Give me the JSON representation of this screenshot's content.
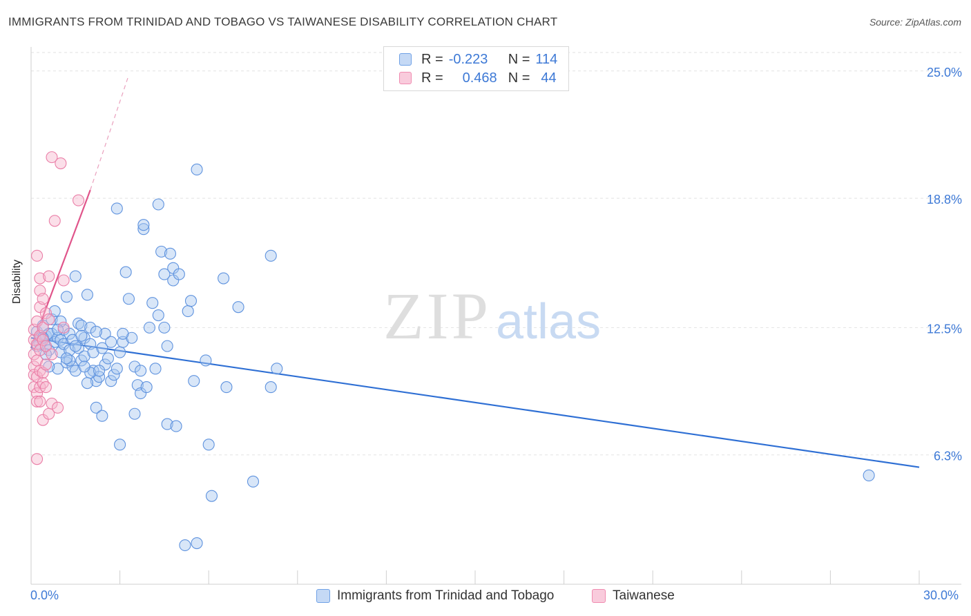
{
  "title": "IMMIGRANTS FROM TRINIDAD AND TOBAGO VS TAIWANESE DISABILITY CORRELATION CHART",
  "source": "Source: ZipAtlas.com",
  "watermark": {
    "zip": "ZIP",
    "atlas": "atlas"
  },
  "legend_stats": [
    {
      "r_label": "R =",
      "r_value": "-0.223",
      "n_label": "N =",
      "n_value": "114",
      "color": "#6fa1e6"
    },
    {
      "r_label": "R =",
      "r_value": "0.468",
      "n_label": "N =",
      "n_value": "44",
      "color": "#f08bb0"
    }
  ],
  "chart_data": {
    "type": "scatter",
    "title": "IMMIGRANTS FROM TRINIDAD AND TOBAGO VS TAIWANESE DISABILITY CORRELATION CHART",
    "xlabel": "",
    "ylabel": "Disability",
    "xlim": [
      0,
      30
    ],
    "ylim": [
      0,
      25.9
    ],
    "x_tick_labels": [
      "0.0%",
      "30.0%"
    ],
    "y_ticks": [
      6.3,
      12.5,
      18.8,
      25.0
    ],
    "y_tick_labels": [
      "6.3%",
      "12.5%",
      "18.8%",
      "25.0%"
    ],
    "grid": true,
    "series": [
      {
        "name": "Immigrants from Trinidad and Tobago",
        "color": "#6fa1e6",
        "line_color": "#2e6fd4",
        "trend": {
          "x": [
            0.0,
            30.0
          ],
          "y": [
            12.0,
            5.7
          ]
        },
        "points": [
          [
            0.2,
            12.3
          ],
          [
            0.3,
            12.0
          ],
          [
            0.3,
            11.7
          ],
          [
            0.4,
            12.6
          ],
          [
            0.4,
            11.9
          ],
          [
            0.5,
            12.1
          ],
          [
            0.5,
            11.6
          ],
          [
            0.6,
            12.2
          ],
          [
            0.6,
            11.4
          ],
          [
            0.7,
            12.9
          ],
          [
            0.7,
            12.2
          ],
          [
            0.8,
            11.8
          ],
          [
            0.8,
            13.3
          ],
          [
            0.9,
            12.0
          ],
          [
            0.9,
            10.5
          ],
          [
            1.0,
            11.3
          ],
          [
            1.0,
            11.9
          ],
          [
            1.1,
            12.4
          ],
          [
            1.1,
            11.7
          ],
          [
            1.2,
            10.8
          ],
          [
            1.2,
            14.0
          ],
          [
            1.3,
            11.4
          ],
          [
            1.3,
            12.2
          ],
          [
            1.4,
            10.6
          ],
          [
            1.4,
            11.9
          ],
          [
            1.5,
            15.0
          ],
          [
            1.5,
            10.4
          ],
          [
            1.6,
            12.7
          ],
          [
            1.6,
            11.5
          ],
          [
            1.7,
            12.6
          ],
          [
            1.7,
            10.9
          ],
          [
            1.8,
            12.0
          ],
          [
            1.8,
            11.1
          ],
          [
            1.9,
            14.1
          ],
          [
            2.0,
            12.5
          ],
          [
            2.0,
            11.7
          ],
          [
            2.1,
            10.4
          ],
          [
            2.1,
            11.3
          ],
          [
            2.2,
            9.9
          ],
          [
            2.2,
            8.6
          ],
          [
            2.3,
            10.1
          ],
          [
            2.4,
            11.5
          ],
          [
            2.4,
            8.2
          ],
          [
            2.5,
            12.2
          ],
          [
            2.5,
            10.7
          ],
          [
            2.6,
            11.0
          ],
          [
            2.7,
            9.9
          ],
          [
            2.8,
            10.2
          ],
          [
            2.9,
            18.3
          ],
          [
            3.0,
            11.3
          ],
          [
            3.0,
            6.8
          ],
          [
            3.1,
            11.8
          ],
          [
            3.2,
            15.2
          ],
          [
            3.3,
            13.9
          ],
          [
            3.4,
            12.0
          ],
          [
            3.5,
            8.3
          ],
          [
            3.5,
            10.6
          ],
          [
            3.6,
            9.7
          ],
          [
            3.7,
            10.4
          ],
          [
            3.7,
            9.3
          ],
          [
            3.9,
            9.6
          ],
          [
            4.0,
            12.5
          ],
          [
            4.1,
            13.7
          ],
          [
            4.2,
            10.5
          ],
          [
            4.3,
            13.1
          ],
          [
            4.4,
            16.2
          ],
          [
            4.5,
            15.1
          ],
          [
            4.5,
            12.5
          ],
          [
            4.6,
            11.6
          ],
          [
            4.6,
            7.8
          ],
          [
            4.7,
            16.1
          ],
          [
            4.8,
            15.4
          ],
          [
            4.8,
            14.8
          ],
          [
            4.9,
            7.7
          ],
          [
            5.0,
            15.1
          ],
          [
            5.3,
            13.3
          ],
          [
            5.4,
            13.8
          ],
          [
            5.5,
            9.9
          ],
          [
            5.6,
            20.2
          ],
          [
            5.9,
            10.9
          ],
          [
            6.0,
            6.8
          ],
          [
            6.1,
            4.3
          ],
          [
            6.5,
            14.9
          ],
          [
            6.6,
            9.6
          ],
          [
            7.0,
            13.5
          ],
          [
            7.5,
            5.0
          ],
          [
            8.1,
            16.0
          ],
          [
            8.1,
            9.6
          ],
          [
            8.3,
            10.5
          ],
          [
            3.8,
            17.3
          ],
          [
            3.8,
            17.5
          ],
          [
            4.3,
            18.5
          ],
          [
            2.0,
            10.3
          ],
          [
            1.3,
            10.9
          ],
          [
            0.6,
            10.6
          ],
          [
            1.0,
            12.8
          ],
          [
            2.7,
            11.8
          ],
          [
            1.8,
            10.6
          ],
          [
            0.4,
            12.0
          ],
          [
            0.2,
            11.6
          ],
          [
            5.2,
            1.9
          ],
          [
            5.6,
            2.0
          ],
          [
            28.3,
            5.3
          ],
          [
            1.9,
            9.8
          ],
          [
            3.1,
            12.2
          ],
          [
            2.3,
            10.4
          ],
          [
            1.5,
            11.6
          ],
          [
            0.9,
            12.4
          ],
          [
            1.2,
            11.0
          ],
          [
            2.9,
            10.5
          ],
          [
            1.7,
            12.1
          ],
          [
            0.5,
            11.2
          ],
          [
            2.2,
            12.3
          ]
        ]
      },
      {
        "name": "Taiwanese",
        "color": "#f08bb0",
        "line_color": "#e0548a",
        "trend": {
          "x": [
            0.0,
            2.0
          ],
          "y": [
            11.5,
            19.2
          ]
        },
        "trend_dashed": {
          "x": [
            2.0,
            3.3
          ],
          "y": [
            19.2,
            24.8
          ]
        },
        "points": [
          [
            0.1,
            11.9
          ],
          [
            0.1,
            11.2
          ],
          [
            0.1,
            10.6
          ],
          [
            0.1,
            10.2
          ],
          [
            0.1,
            9.6
          ],
          [
            0.1,
            12.4
          ],
          [
            0.2,
            11.7
          ],
          [
            0.2,
            10.9
          ],
          [
            0.2,
            10.1
          ],
          [
            0.2,
            9.3
          ],
          [
            0.2,
            8.9
          ],
          [
            0.2,
            6.1
          ],
          [
            0.2,
            16.0
          ],
          [
            0.2,
            12.8
          ],
          [
            0.3,
            11.4
          ],
          [
            0.3,
            10.4
          ],
          [
            0.3,
            9.6
          ],
          [
            0.3,
            8.9
          ],
          [
            0.3,
            13.5
          ],
          [
            0.3,
            14.3
          ],
          [
            0.3,
            12.1
          ],
          [
            0.3,
            14.9
          ],
          [
            0.4,
            11.9
          ],
          [
            0.4,
            10.3
          ],
          [
            0.4,
            9.8
          ],
          [
            0.4,
            8.0
          ],
          [
            0.4,
            13.9
          ],
          [
            0.4,
            12.5
          ],
          [
            0.5,
            11.6
          ],
          [
            0.5,
            9.6
          ],
          [
            0.5,
            10.7
          ],
          [
            0.5,
            13.2
          ],
          [
            0.6,
            15.0
          ],
          [
            0.6,
            12.9
          ],
          [
            0.6,
            8.3
          ],
          [
            0.7,
            20.8
          ],
          [
            0.7,
            11.2
          ],
          [
            0.7,
            8.8
          ],
          [
            0.8,
            17.7
          ],
          [
            0.9,
            8.6
          ],
          [
            1.0,
            20.5
          ],
          [
            1.1,
            12.5
          ],
          [
            1.1,
            14.8
          ],
          [
            1.6,
            18.7
          ]
        ]
      }
    ]
  },
  "bottom_legend": [
    {
      "label": "Immigrants from Trinidad and Tobago",
      "color": "#6fa1e6"
    },
    {
      "label": "Taiwanese",
      "color": "#f08bb0"
    }
  ]
}
